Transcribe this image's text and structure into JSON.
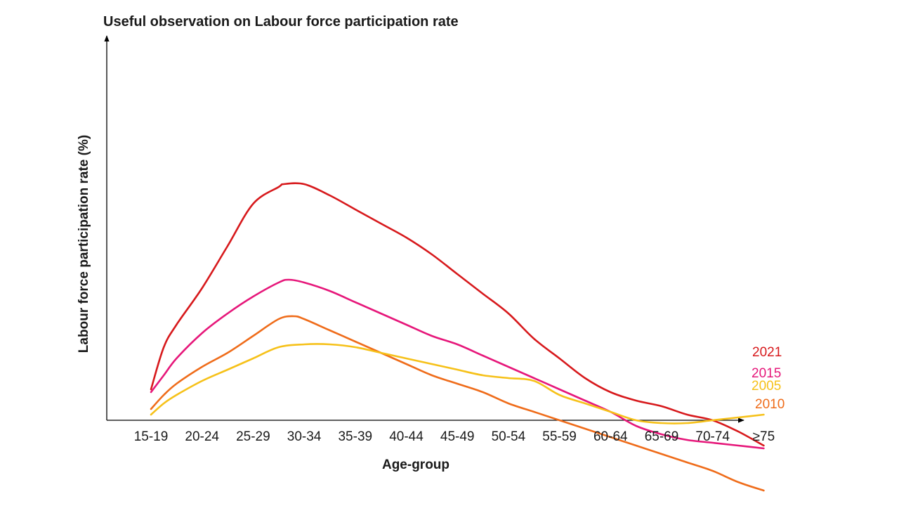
{
  "chart_data": {
    "type": "line",
    "title": "Useful observation on Labour force participation rate",
    "xlabel": "Age-group",
    "ylabel": "Labour force participation rate (%)",
    "categories": [
      "15-19",
      "20-24",
      "25-29",
      "30-34",
      "35-39",
      "40-44",
      "45-49",
      "50-54",
      "55-59",
      "60-64",
      "65-69",
      "70-74",
      "≥75"
    ],
    "y_ticks_shown": false,
    "grid": false,
    "legend": "inline-right",
    "series": [
      {
        "name": "2021",
        "color": "#d7191c",
        "values": [
          [
            0,
            9
          ],
          [
            0.25,
            24
          ],
          [
            0.5,
            32
          ],
          [
            1,
            45
          ],
          [
            1.5,
            60
          ],
          [
            2,
            75
          ],
          [
            2.5,
            81
          ],
          [
            2.6,
            82
          ],
          [
            3,
            82
          ],
          [
            3.5,
            78
          ],
          [
            4,
            73
          ],
          [
            4.5,
            68
          ],
          [
            5,
            63
          ],
          [
            5.5,
            57
          ],
          [
            6,
            50
          ],
          [
            6.5,
            43
          ],
          [
            7,
            36
          ],
          [
            7.5,
            27
          ],
          [
            8,
            20
          ],
          [
            8.5,
            13
          ],
          [
            9,
            8
          ],
          [
            9.5,
            5
          ],
          [
            10,
            3
          ],
          [
            10.5,
            0
          ],
          [
            11,
            -2
          ],
          [
            11.5,
            -6
          ],
          [
            12,
            -11
          ]
        ],
        "label": "2021"
      },
      {
        "name": "2015",
        "color": "#e6177a",
        "values": [
          [
            0,
            8
          ],
          [
            0.25,
            14
          ],
          [
            0.5,
            20
          ],
          [
            1,
            29
          ],
          [
            1.5,
            36
          ],
          [
            2,
            42
          ],
          [
            2.5,
            47
          ],
          [
            2.7,
            48
          ],
          [
            3,
            47
          ],
          [
            3.5,
            44
          ],
          [
            4,
            40
          ],
          [
            4.5,
            36
          ],
          [
            5,
            32
          ],
          [
            5.5,
            28
          ],
          [
            6,
            25
          ],
          [
            6.5,
            21
          ],
          [
            7,
            17
          ],
          [
            7.5,
            13
          ],
          [
            8,
            9
          ],
          [
            8.5,
            5
          ],
          [
            9,
            1
          ],
          [
            9.5,
            -4
          ],
          [
            10,
            -7
          ],
          [
            10.5,
            -9
          ],
          [
            11,
            -10
          ],
          [
            11.5,
            -11
          ],
          [
            12,
            -12
          ]
        ],
        "label": "2015"
      },
      {
        "name": "2010",
        "color": "#ef6c1a",
        "values": [
          [
            0,
            2
          ],
          [
            0.25,
            7
          ],
          [
            0.5,
            11
          ],
          [
            1,
            17
          ],
          [
            1.5,
            22
          ],
          [
            2,
            28
          ],
          [
            2.5,
            34
          ],
          [
            2.8,
            35
          ],
          [
            3,
            34
          ],
          [
            3.5,
            30
          ],
          [
            4,
            26
          ],
          [
            4.5,
            22
          ],
          [
            5,
            18
          ],
          [
            5.5,
            14
          ],
          [
            6,
            11
          ],
          [
            6.5,
            8
          ],
          [
            7,
            4
          ],
          [
            7.5,
            1
          ],
          [
            8,
            -2
          ],
          [
            8.5,
            -5
          ],
          [
            9,
            -8
          ],
          [
            9.5,
            -11
          ],
          [
            10,
            -14
          ],
          [
            10.5,
            -17
          ],
          [
            11,
            -20
          ],
          [
            11.5,
            -24
          ],
          [
            12,
            -27
          ]
        ],
        "label": "2010"
      },
      {
        "name": "2005",
        "color": "#f6c119",
        "values": [
          [
            0,
            0
          ],
          [
            0.25,
            4
          ],
          [
            0.5,
            7
          ],
          [
            1,
            12
          ],
          [
            1.5,
            16
          ],
          [
            2,
            20
          ],
          [
            2.5,
            24
          ],
          [
            3,
            25
          ],
          [
            3.5,
            25
          ],
          [
            4,
            24
          ],
          [
            4.5,
            22
          ],
          [
            5,
            20
          ],
          [
            5.5,
            18
          ],
          [
            6,
            16
          ],
          [
            6.5,
            14
          ],
          [
            7,
            13
          ],
          [
            7.5,
            12
          ],
          [
            8,
            7
          ],
          [
            8.5,
            4
          ],
          [
            9,
            1
          ],
          [
            9.5,
            -2
          ],
          [
            10,
            -3
          ],
          [
            10.5,
            -3
          ],
          [
            11,
            -2
          ],
          [
            11.5,
            -1
          ],
          [
            12,
            0
          ]
        ],
        "label": "2005"
      }
    ]
  }
}
